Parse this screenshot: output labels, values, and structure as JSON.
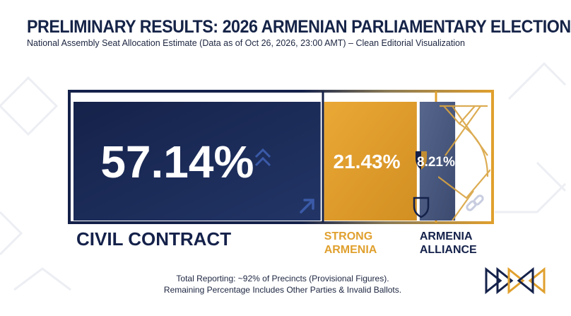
{
  "title": "PRELIMINARY RESULTS: 2026 ARMENIAN PARLIAMENTARY ELECTION",
  "subtitle": "National Assembly Seat Allocation Estimate (Data as of Oct 26, 2026, 23:00 AMT) – Clean Editorial Visualization",
  "footnote": {
    "line1": "Total Reporting: ~92% of Precincts (Provisional Figures).",
    "line2": "Remaining Percentage Includes Other Parties & Invalid Ballots."
  },
  "colors": {
    "navy": "#1a2b58",
    "gold": "#e0a02e",
    "slate": "#4a5a82",
    "outline_dark": "#14214a",
    "outline_gold": "#e0a02e"
  },
  "chart_data": {
    "type": "bar",
    "orientation": "horizontal-stacked",
    "unit": "%",
    "series": [
      {
        "name": "CIVIL CONTRACT",
        "name_lines": [
          "CIVIL CONTRACT"
        ],
        "value": 57.14,
        "label": "57.14%",
        "color": "#1a2b58",
        "label_color": "#14214a",
        "icons": [
          "chevrons-up-icon",
          "arrow-up-right-icon"
        ]
      },
      {
        "name": "STRONG ARMENIA",
        "name_lines": [
          "STRONG",
          "ARMENIA"
        ],
        "value": 21.43,
        "label": "21.43%",
        "color": "#e0a02e",
        "label_color": "#e0a02e",
        "icons": [
          "shield-icon"
        ]
      },
      {
        "name": "ARMENIA ALLIANCE",
        "name_lines": [
          "ARMENIA",
          "ALLIANCE"
        ],
        "value": 8.21,
        "label": "8.21%",
        "color": "#4a5a82",
        "label_color": "#14214a",
        "icons": [
          "link-icon"
        ]
      }
    ]
  }
}
